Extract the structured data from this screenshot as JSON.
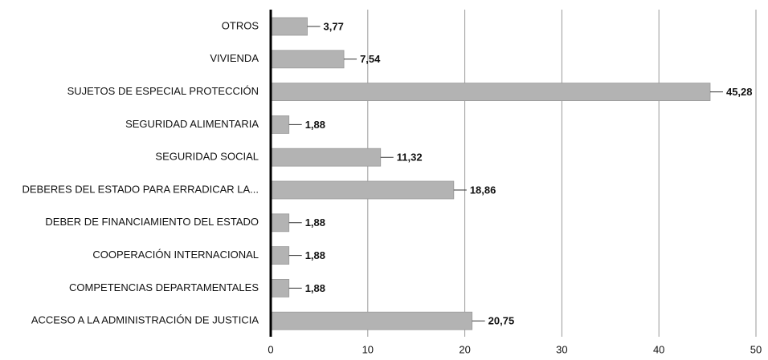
{
  "chart_data": {
    "type": "hbar",
    "categories": [
      "OTROS",
      "VIVIENDA",
      "SUJETOS DE ESPECIAL PROTECCIÓN",
      "SEGURIDAD ALIMENTARIA",
      "SEGURIDAD SOCIAL",
      "DEBERES DEL ESTADO PARA ERRADICAR LA...",
      "DEBER DE FINANCIAMIENTO DEL ESTADO",
      "COOPERACIÓN INTERNACIONAL",
      "COMPETENCIAS DEPARTAMENTALES",
      "ACCESO A LA ADMINISTRACIÓN DE JUSTICIA"
    ],
    "values": [
      3.77,
      7.54,
      45.28,
      1.88,
      11.32,
      18.86,
      1.88,
      1.88,
      1.88,
      20.75
    ],
    "value_labels": [
      "3,77",
      "7,54",
      "45,28",
      "1,88",
      "11,32",
      "18,86",
      "1,88",
      "1,88",
      "1,88",
      "20,75"
    ],
    "color": "#b3b3b3",
    "xlim": [
      0,
      50
    ],
    "xticks": [
      0,
      10,
      20,
      30,
      40,
      50
    ],
    "grid": true
  }
}
